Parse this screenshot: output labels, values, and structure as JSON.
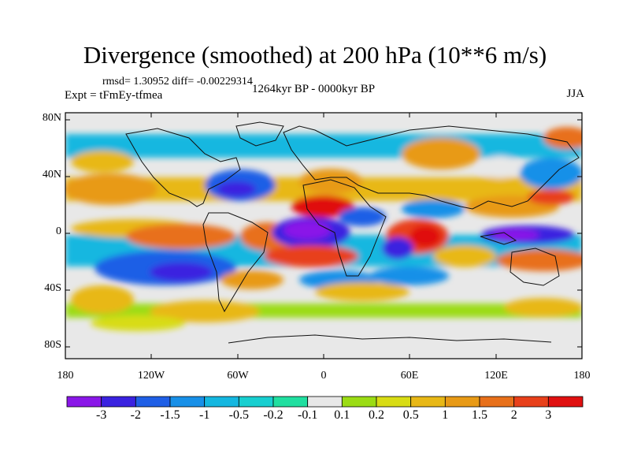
{
  "header": {
    "title": "Divergence (smoothed) at 200 hPa (10**6 m/s)",
    "stats": "rmsd= 1.30952 diff= -0.00229314",
    "experiment": "Expt = tFmEy-tfmea",
    "period": "1264kyr BP - 0000kyr BP",
    "season": "JJA"
  },
  "axes": {
    "lat_labels": [
      "80N",
      "40N",
      "0",
      "40S",
      "80S"
    ],
    "lon_labels": [
      "180",
      "120W",
      "60W",
      "0",
      "60E",
      "120E",
      "180"
    ]
  },
  "colorbar": {
    "labels": [
      "-3",
      "-2",
      "-1.5",
      "-1",
      "-0.5",
      "-0.2",
      "-0.1",
      "0.1",
      "0.2",
      "0.5",
      "1",
      "1.5",
      "2",
      "3"
    ],
    "colors": [
      "#8a17e8",
      "#3a22e0",
      "#1f5fe6",
      "#1890e8",
      "#14b7e0",
      "#18cfd0",
      "#20dfa0",
      "#e8e8e8",
      "#9bdc14",
      "#d8dc14",
      "#e8b816",
      "#e89a16",
      "#e8701a",
      "#e8401a",
      "#e01010"
    ]
  }
}
